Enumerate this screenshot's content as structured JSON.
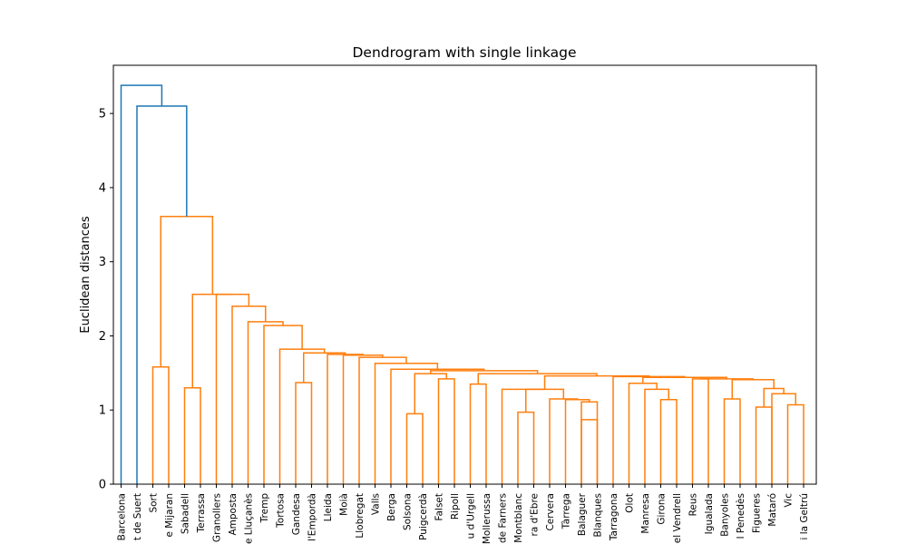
{
  "chart_data": {
    "type": "dendrogram",
    "title": "Dendrogram with single linkage",
    "xlabel": "",
    "ylabel": "Euclidean distances",
    "ylim": [
      0,
      5.65
    ],
    "yticks": [
      0,
      1,
      2,
      3,
      4,
      5
    ],
    "grid": false,
    "colors": {
      "above_threshold": "#1f77b4",
      "cluster": "#ff7f0e"
    },
    "leaves": [
      "Barcelona",
      "t de Suert",
      "Sort",
      "e Mijaran",
      "Sabadell",
      "Terrassa",
      "Granollers",
      "Amposta",
      "e Lluçanès",
      "Tremp",
      "Tortosa",
      "Gandesa",
      "l'Empordà",
      "Lleida",
      "Moià",
      "Llobregat",
      "Valls",
      "Berga",
      "Solsona",
      "Puigcerdà",
      "Falset",
      "Ripoll",
      "u d'Urgell",
      "Mollerussa",
      "de Farners",
      "Montblanc",
      "ra d'Ebre",
      "Cervera",
      "Tàrrega",
      "Balaguer",
      "Blanques",
      "Tarragona",
      "Olot",
      "Manresa",
      "Girona",
      "el Vendrell",
      "Reus",
      "Igualada",
      "Banyoles",
      "l Penedès",
      "Figueres",
      "Mataró",
      "Vic",
      "i la Geltrú"
    ],
    "merges": [
      {
        "a": 19,
        "b": 20,
        "h": 0.95,
        "c": "cluster"
      },
      {
        "a": 26,
        "b": 27,
        "h": 0.97,
        "c": "cluster"
      },
      {
        "a": 31,
        "b": 32,
        "h": 0.87,
        "c": "cluster"
      },
      {
        "a": 41,
        "b": 42,
        "h": 1.04,
        "c": "cluster"
      },
      {
        "a": 43,
        "b": 44,
        "h": 1.07,
        "c": "cluster"
      },
      {
        "a": 30,
        "b": "n2",
        "h": 1.11,
        "c": "cluster"
      },
      {
        "a": 29,
        "b": "n5",
        "h": 1.14,
        "c": "cluster"
      },
      {
        "a": "n1",
        "b": "n6",
        "h": 1.15,
        "c": "cluster"
      },
      {
        "a": 39,
        "b": 40,
        "h": 1.15,
        "c": "cluster"
      },
      {
        "a": 35,
        "b": 36,
        "h": 1.14,
        "c": "cluster"
      },
      {
        "a": 34,
        "b": "n9",
        "h": 1.28,
        "c": "cluster"
      },
      {
        "a": 5,
        "b": 6,
        "h": 1.3,
        "c": "cluster"
      },
      {
        "a": 23,
        "b": 24,
        "h": 1.35,
        "c": "cluster"
      },
      {
        "a": 12,
        "b": 13,
        "h": 1.37,
        "c": "cluster"
      },
      {
        "a": 33,
        "b": "n10",
        "h": 1.36,
        "c": "cluster"
      },
      {
        "a": "n4",
        "b": "n7",
        "h": 1.22,
        "c": "cluster"
      },
      {
        "a": "n8",
        "b": "n15",
        "h": 1.29,
        "c": "cluster"
      },
      {
        "a": 25,
        "b": "n8",
        "h": 1.27,
        "c": "cluster"
      },
      {
        "a": 22,
        "b": 21,
        "h": 1.42,
        "c": "cluster"
      },
      {
        "a": "n1",
        "b": "n18",
        "h": 1.47,
        "c": "cluster"
      },
      {
        "a": 37,
        "b": 38,
        "h": 1.42,
        "c": "cluster"
      },
      {
        "a": 3,
        "b": 4,
        "h": 1.58,
        "c": "cluster"
      }
    ],
    "summary_heights": {
      "Barcelona_root": 5.38,
      "tdeSuert_join": 5.1,
      "big_cluster_join": 3.61,
      "granollers_branch": 2.56,
      "amposta": 2.4,
      "lluçanès": 2.19,
      "tremp": 2.14,
      "tortosa": 1.82,
      "gandesa": 1.77,
      "lleida": 1.75,
      "moia": 1.74,
      "llobregat": 1.71,
      "valls": 1.63,
      "berga": 1.55
    }
  }
}
